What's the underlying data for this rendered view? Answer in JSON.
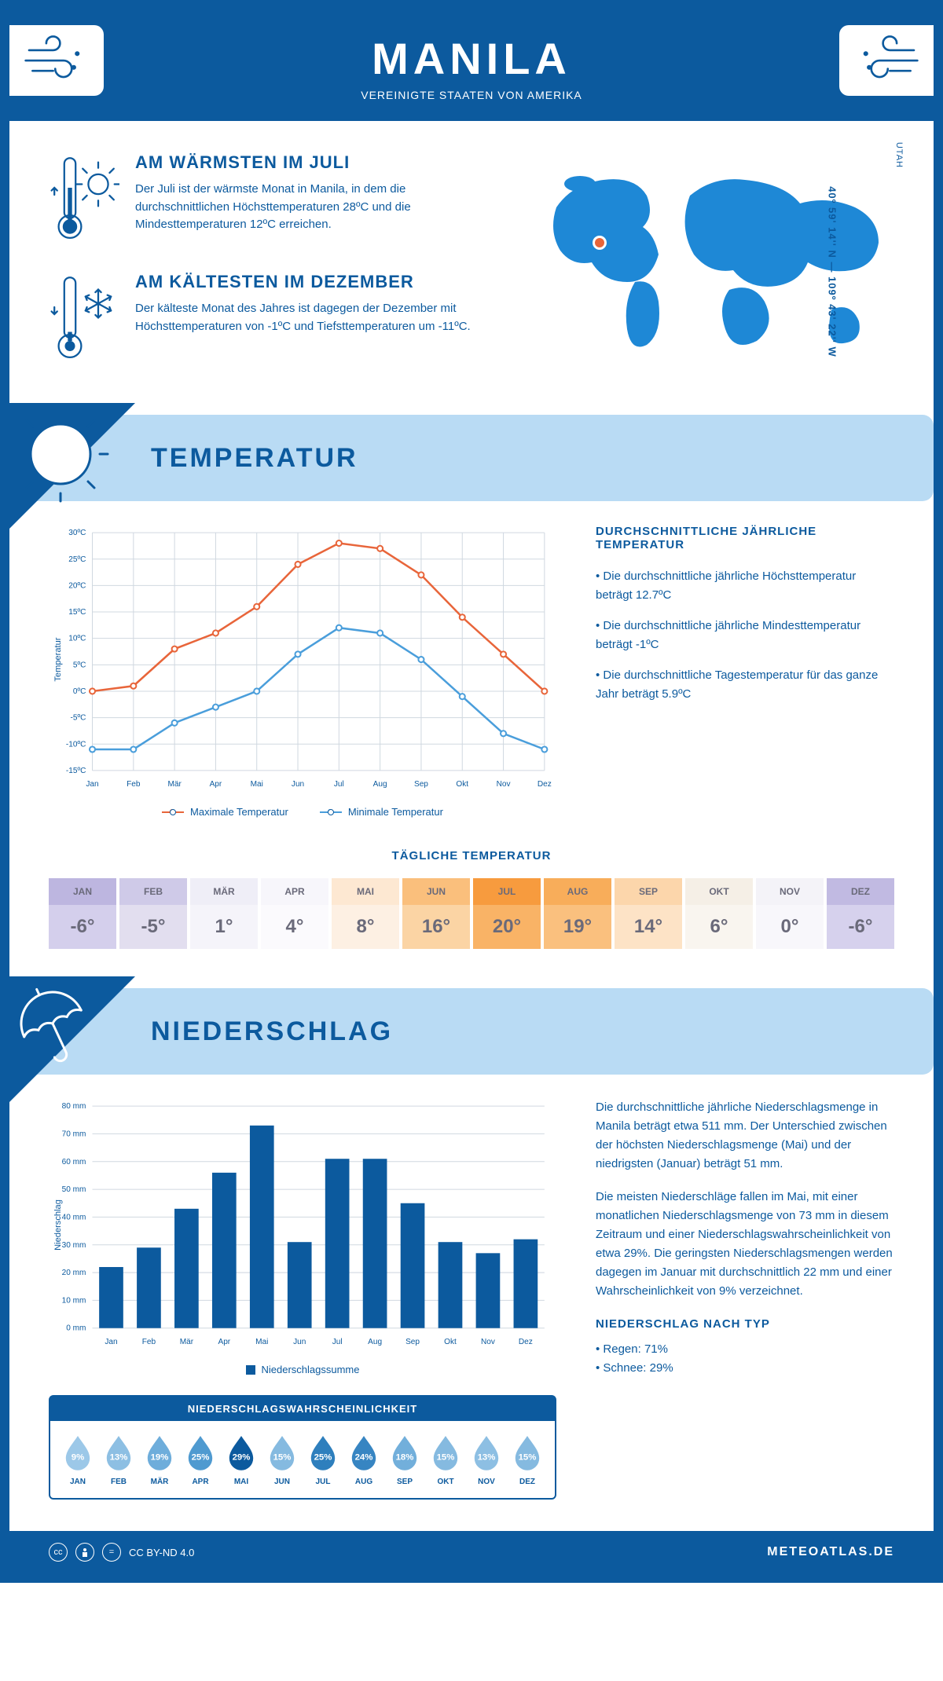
{
  "header": {
    "title": "MANILA",
    "subtitle": "VEREINIGTE STAATEN VON AMERIKA",
    "bg_color": "#0c5a9e",
    "text_color": "#ffffff"
  },
  "colors": {
    "primary": "#0c5a9e",
    "light_blue": "#b9dbf4",
    "chart_blue": "#1e88d6",
    "max_line": "#e8653a",
    "min_line": "#4a9edb",
    "grid": "#d0d8e0"
  },
  "info": {
    "warm_title": "AM WÄRMSTEN IM JULI",
    "warm_text": "Der Juli ist der wärmste Monat in Manila, in dem die durchschnittlichen Höchsttemperaturen 28ºC und die Mindesttemperaturen 12ºC erreichen.",
    "cold_title": "AM KÄLTESTEN IM DEZEMBER",
    "cold_text": "Der kälteste Monat des Jahres ist dagegen der Dezember mit Höchsttemperaturen von -1ºC und Tiefsttemperaturen um -11ºC."
  },
  "map": {
    "coords": "40º 59' 14'' N — 109º 43' 22'' W",
    "region": "UTAH",
    "marker_color": "#e8653a"
  },
  "temp_banner": "TEMPERATUR",
  "temp_chart": {
    "type": "line",
    "months": [
      "Jan",
      "Feb",
      "Mär",
      "Apr",
      "Mai",
      "Jun",
      "Jul",
      "Aug",
      "Sep",
      "Okt",
      "Nov",
      "Dez"
    ],
    "max_values": [
      0,
      1,
      8,
      11,
      16,
      24,
      28,
      27,
      22,
      14,
      7,
      0
    ],
    "min_values": [
      -11,
      -11,
      -6,
      -3,
      0,
      7,
      12,
      11,
      6,
      -1,
      -8,
      -11
    ],
    "ylim": [
      -15,
      30
    ],
    "ytick_step": 5,
    "ylabel": "Temperatur",
    "legend_max": "Maximale Temperatur",
    "legend_min": "Minimale Temperatur"
  },
  "temp_text": {
    "title": "DURCHSCHNITTLICHE JÄHRLICHE TEMPERATUR",
    "b1": "• Die durchschnittliche jährliche Höchsttemperatur beträgt 12.7ºC",
    "b2": "• Die durchschnittliche jährliche Mindesttemperatur beträgt -1ºC",
    "b3": "• Die durchschnittliche Tagestemperatur für das ganze Jahr beträgt 5.9ºC"
  },
  "daily": {
    "title": "TÄGLICHE TEMPERATUR",
    "months": [
      "JAN",
      "FEB",
      "MÄR",
      "APR",
      "MAI",
      "JUN",
      "JUL",
      "AUG",
      "SEP",
      "OKT",
      "NOV",
      "DEZ"
    ],
    "values": [
      "-6°",
      "-5°",
      "1°",
      "4°",
      "8°",
      "16°",
      "20°",
      "19°",
      "14°",
      "6°",
      "0°",
      "-6°"
    ],
    "header_colors": [
      "#bdb6e0",
      "#cfcae8",
      "#efeef7",
      "#f7f6fb",
      "#fde8d2",
      "#fabf7c",
      "#f79b3e",
      "#f8ad5a",
      "#fcd6ab",
      "#f5efe6",
      "#f4f3f8",
      "#c1bae2"
    ],
    "value_colors": [
      "#d4cfec",
      "#e2deef",
      "#f5f4fa",
      "#fbfafd",
      "#fdf0e3",
      "#fbd4a4",
      "#f9b366",
      "#fac07e",
      "#fde3c6",
      "#f9f5ef",
      "#f8f7fb",
      "#d6d1ed"
    ],
    "text_color": "#6a6a7a"
  },
  "precip_banner": "NIEDERSCHLAG",
  "precip_chart": {
    "type": "bar",
    "months": [
      "Jan",
      "Feb",
      "Mär",
      "Apr",
      "Mai",
      "Jun",
      "Jul",
      "Aug",
      "Sep",
      "Okt",
      "Nov",
      "Dez"
    ],
    "values": [
      22,
      29,
      43,
      56,
      73,
      31,
      61,
      61,
      45,
      31,
      27,
      32
    ],
    "ylim": [
      0,
      80
    ],
    "ytick_step": 10,
    "ylabel": "Niederschlag",
    "legend": "Niederschlagssumme",
    "bar_color": "#0c5a9e"
  },
  "precip_text": {
    "p1": "Die durchschnittliche jährliche Niederschlagsmenge in Manila beträgt etwa 511 mm. Der Unterschied zwischen der höchsten Niederschlagsmenge (Mai) und der niedrigsten (Januar) beträgt 51 mm.",
    "p2": "Die meisten Niederschläge fallen im Mai, mit einer monatlichen Niederschlagsmenge von 73 mm in diesem Zeitraum und einer Niederschlagswahrscheinlichkeit von etwa 29%. Die geringsten Niederschlagsmengen werden dagegen im Januar mit durchschnittlich 22 mm und einer Wahrscheinlichkeit von 9% verzeichnet.",
    "type_title": "NIEDERSCHLAG NACH TYP",
    "type_1": "• Regen: 71%",
    "type_2": "• Schnee: 29%"
  },
  "prob": {
    "title": "NIEDERSCHLAGSWAHRSCHEINLICHKEIT",
    "months": [
      "JAN",
      "FEB",
      "MÄR",
      "APR",
      "MAI",
      "JUN",
      "JUL",
      "AUG",
      "SEP",
      "OKT",
      "NOV",
      "DEZ"
    ],
    "values": [
      "9%",
      "13%",
      "19%",
      "25%",
      "29%",
      "15%",
      "25%",
      "24%",
      "18%",
      "15%",
      "13%",
      "15%"
    ],
    "colors": [
      "#9cc8e8",
      "#8dbfe3",
      "#6eaddb",
      "#4f9ad0",
      "#0c5a9e",
      "#85bae0",
      "#2e7fbd",
      "#3785c2",
      "#72afdb",
      "#85bae0",
      "#8dbfe3",
      "#85bae0"
    ]
  },
  "footer": {
    "license": "CC BY-ND 4.0",
    "site": "METEOATLAS.DE"
  }
}
